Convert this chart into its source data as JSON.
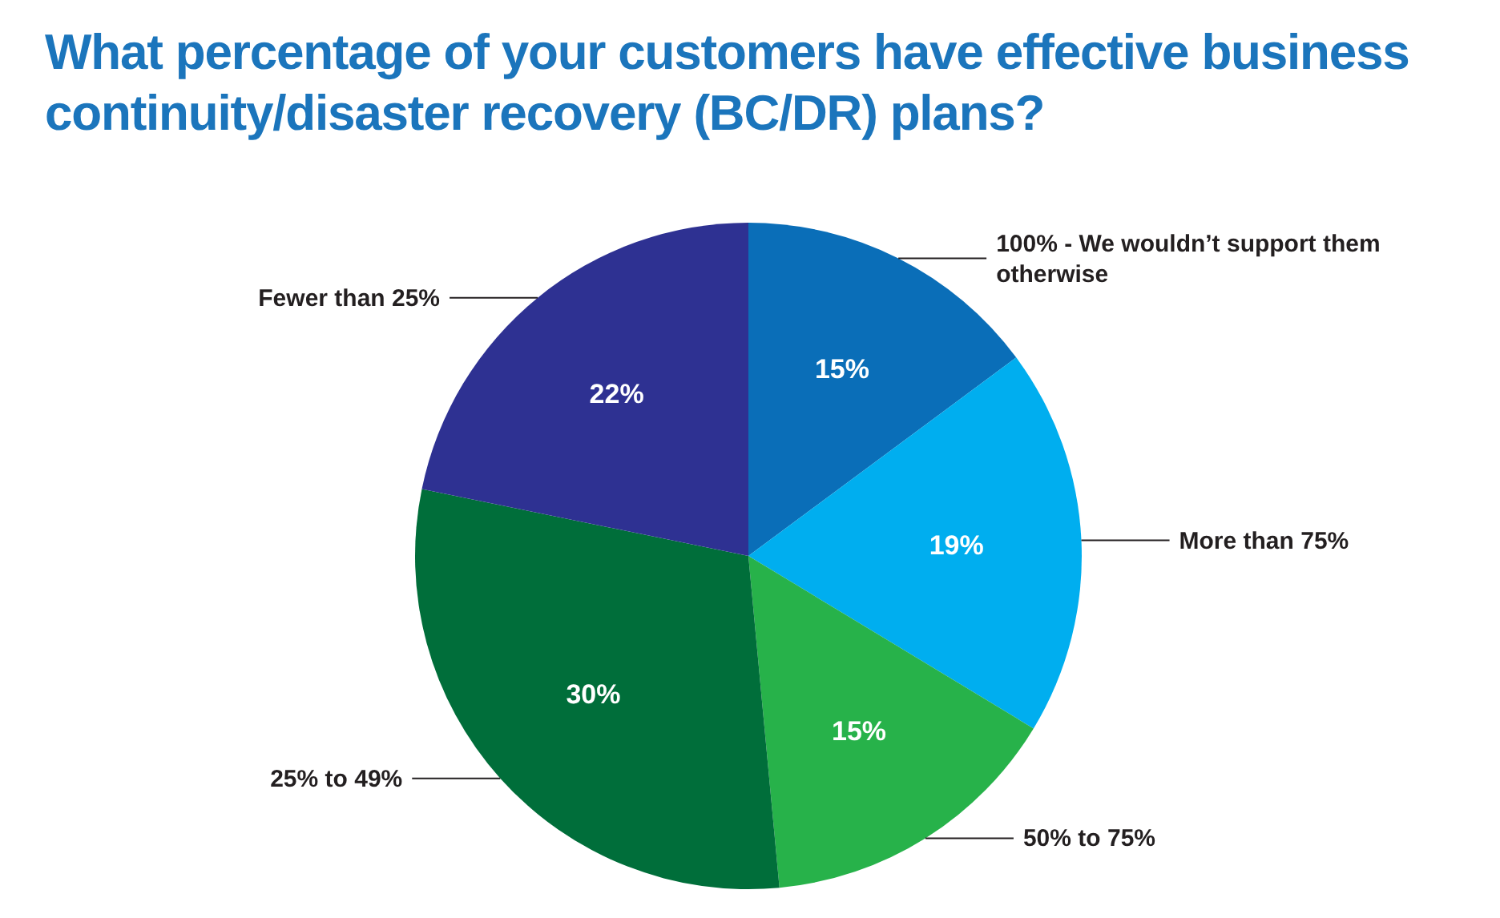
{
  "chart_data": {
    "type": "pie",
    "title": "What percentage of your customers have effective business continuity/disaster recovery (BC/DR) plans?",
    "categories": [
      "100% - We wouldn’t support them otherwise",
      "More than 75%",
      "50% to 75%",
      "25% to 49%",
      "Fewer than 25%"
    ],
    "values": [
      15,
      19,
      15,
      30,
      22
    ],
    "value_labels": [
      "15%",
      "19%",
      "15%",
      "30%",
      "22%"
    ],
    "colors": [
      "#0a6eb8",
      "#00aeef",
      "#27b24a",
      "#006e3a",
      "#2e3192"
    ]
  }
}
